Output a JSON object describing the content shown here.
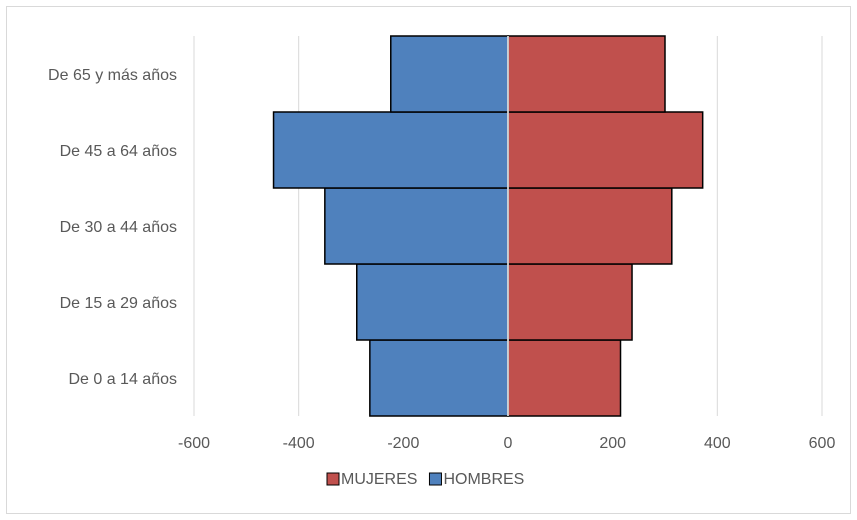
{
  "chart_data": {
    "type": "bar",
    "orientation": "horizontal",
    "stacked_diverging": true,
    "categories": [
      "De 0 a 14 años",
      "De 15 a 29 años",
      "De 30 a 44 años",
      "De 45 a 64 años",
      "De 65 y más años"
    ],
    "series": [
      {
        "name": "MUJERES",
        "values": [
          215,
          237,
          313,
          372,
          300
        ],
        "color": "#c0504d"
      },
      {
        "name": "HOMBRES",
        "values": [
          -264,
          -289,
          -350,
          -448,
          -224
        ],
        "color": "#4f81bd"
      }
    ],
    "xlim": [
      -600,
      600
    ],
    "xticks": [
      -600,
      -400,
      -200,
      0,
      200,
      400,
      600
    ],
    "xtick_labels": [
      "-600",
      "-400",
      "-200",
      "0",
      "200",
      "400",
      "600"
    ],
    "grid": "vertical",
    "legend": "bottom",
    "title": "",
    "xlabel": "",
    "ylabel": ""
  }
}
